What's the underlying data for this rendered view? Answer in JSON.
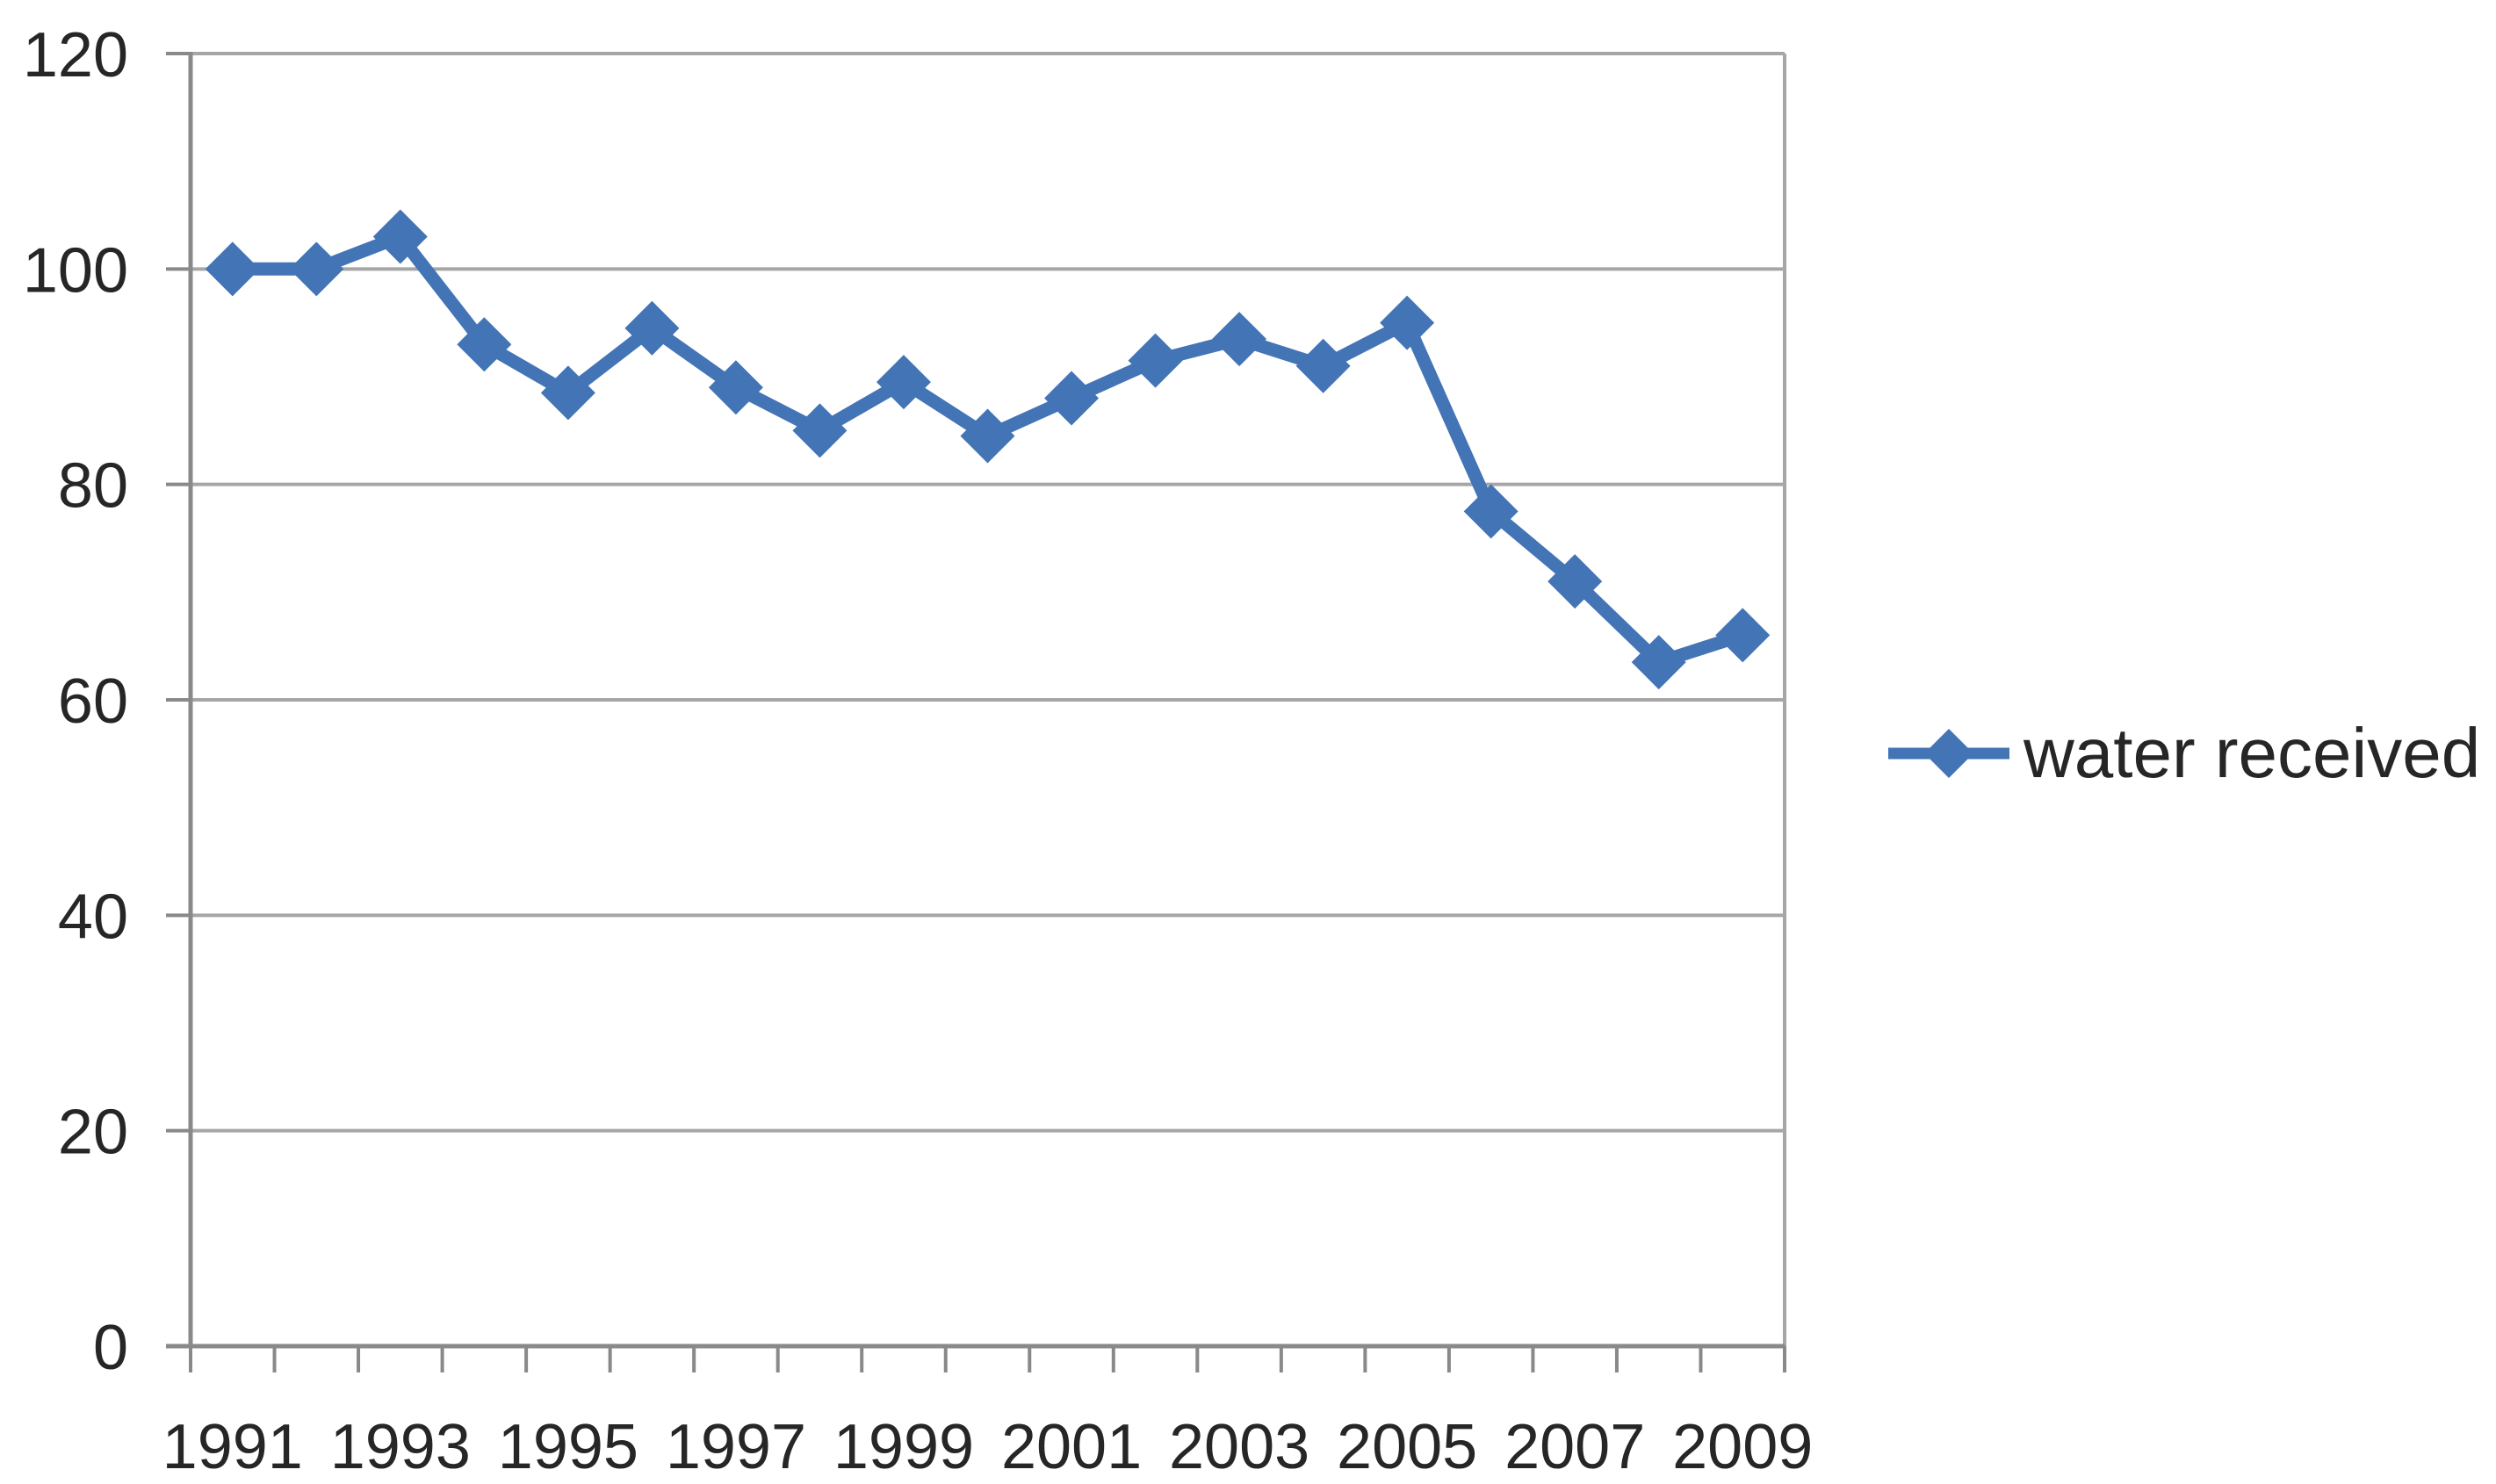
{
  "chart_data": {
    "type": "line",
    "title": "",
    "xlabel": "",
    "ylabel": "",
    "categories": [
      "1991",
      "1992",
      "1993",
      "1994",
      "1995",
      "1996",
      "1997",
      "1998",
      "1999",
      "2000",
      "2001",
      "2002",
      "2003",
      "2004",
      "2005",
      "2006",
      "2007",
      "2008",
      "2009"
    ],
    "series": [
      {
        "name": "water received",
        "values": [
          100,
          100,
          103,
          93,
          88.5,
          94.5,
          89,
          85,
          89.5,
          84.5,
          88,
          91.5,
          93.5,
          91,
          95,
          77.5,
          71,
          63.5,
          66
        ],
        "marker": "diamond"
      }
    ],
    "x_tick_labels": [
      "1991",
      "1993",
      "1995",
      "1997",
      "1999",
      "2001",
      "2003",
      "2005",
      "2007",
      "2009"
    ],
    "y_ticks": [
      "0",
      "20",
      "40",
      "60",
      "80",
      "100",
      "120"
    ],
    "ylim": [
      0,
      120
    ],
    "grid": "horizontal",
    "legend_position": "right",
    "colors": {
      "series": "#4374b6",
      "gridline": "#a6a6a6",
      "axis": "#898989",
      "text": "#262626",
      "background": "#ffffff"
    }
  },
  "legend": {
    "label": "water received"
  }
}
